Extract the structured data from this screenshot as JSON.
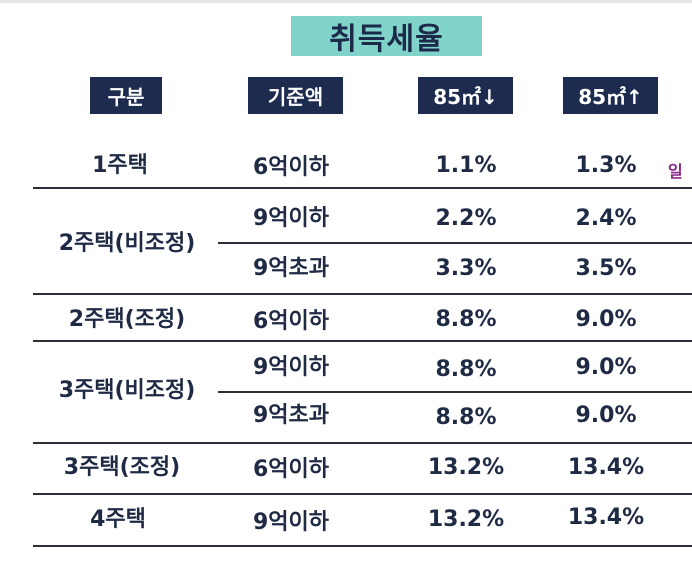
{
  "title": "취득세율",
  "headers": {
    "category": "구분",
    "base_amount": "기준액",
    "under_85": "85㎡↓",
    "over_85": "85㎡↑"
  },
  "rows": [
    {
      "category": "1주택",
      "amount": "6억이하",
      "under_85": "1.1%",
      "over_85": "1.3%"
    },
    {
      "category": "2주택(비조정)",
      "amount": "9억이하",
      "under_85": "2.2%",
      "over_85": "2.4%"
    },
    {
      "category": "",
      "amount": "9억초과",
      "under_85": "3.3%",
      "over_85": "3.5%"
    },
    {
      "category": "2주택(조정)",
      "amount": "6억이하",
      "under_85": "8.8%",
      "over_85": "9.0%"
    },
    {
      "category": "3주택(비조정)",
      "amount": "9억이하",
      "under_85": "8.8%",
      "over_85": "9.0%"
    },
    {
      "category": "",
      "amount": "9억초과",
      "under_85": "8.8%",
      "over_85": "9.0%"
    },
    {
      "category": "3주택(조정)",
      "amount": "6억이하",
      "under_85": "13.2%",
      "over_85": "13.4%"
    },
    {
      "category": "4주택",
      "amount": "9억이하",
      "under_85": "13.2%",
      "over_85": "13.4%"
    }
  ],
  "side_note": "일",
  "colors": {
    "title_bg": "#7fd3c9",
    "header_bg": "#1c2b4e",
    "text": "#1f2a44"
  }
}
